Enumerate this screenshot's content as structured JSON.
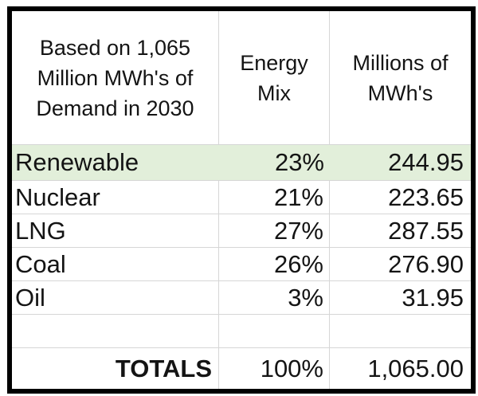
{
  "chart_data": {
    "type": "table",
    "title": "Based on 1,065 Million MWh's of Demand in 2030",
    "columns": [
      "Based on 1,065 Million MWh's of Demand in 2030",
      "Energy Mix",
      "Millions of MWh's"
    ],
    "categories": [
      "Renewable",
      "Nuclear",
      "LNG",
      "Coal",
      "Oil"
    ],
    "series": [
      {
        "name": "Energy Mix",
        "unit": "%",
        "values": [
          23,
          21,
          27,
          26,
          3
        ]
      },
      {
        "name": "Millions of MWh's",
        "values": [
          244.95,
          223.65,
          287.55,
          276.9,
          31.95
        ]
      }
    ],
    "rows": [
      [
        "Renewable",
        "23%",
        "244.95"
      ],
      [
        "Nuclear",
        "21%",
        "223.65"
      ],
      [
        "LNG",
        "27%",
        "287.55"
      ],
      [
        "Coal",
        "26%",
        "276.90"
      ],
      [
        "Oil",
        "3%",
        "31.95"
      ],
      [
        "",
        "",
        ""
      ],
      [
        "TOTALS",
        "100%",
        "1,065.00"
      ]
    ],
    "totals": {
      "label": "TOTALS",
      "mix": "100%",
      "mwh": "1,065.00"
    },
    "highlighted_row": "Renewable",
    "layout": {
      "grid": "on",
      "legend": "none"
    }
  },
  "colors": {
    "highlight_green": "#e2efda",
    "gridline": "#d6d6d6",
    "outer_border": "#000000",
    "text": "#141414",
    "background": "#ffffff"
  }
}
